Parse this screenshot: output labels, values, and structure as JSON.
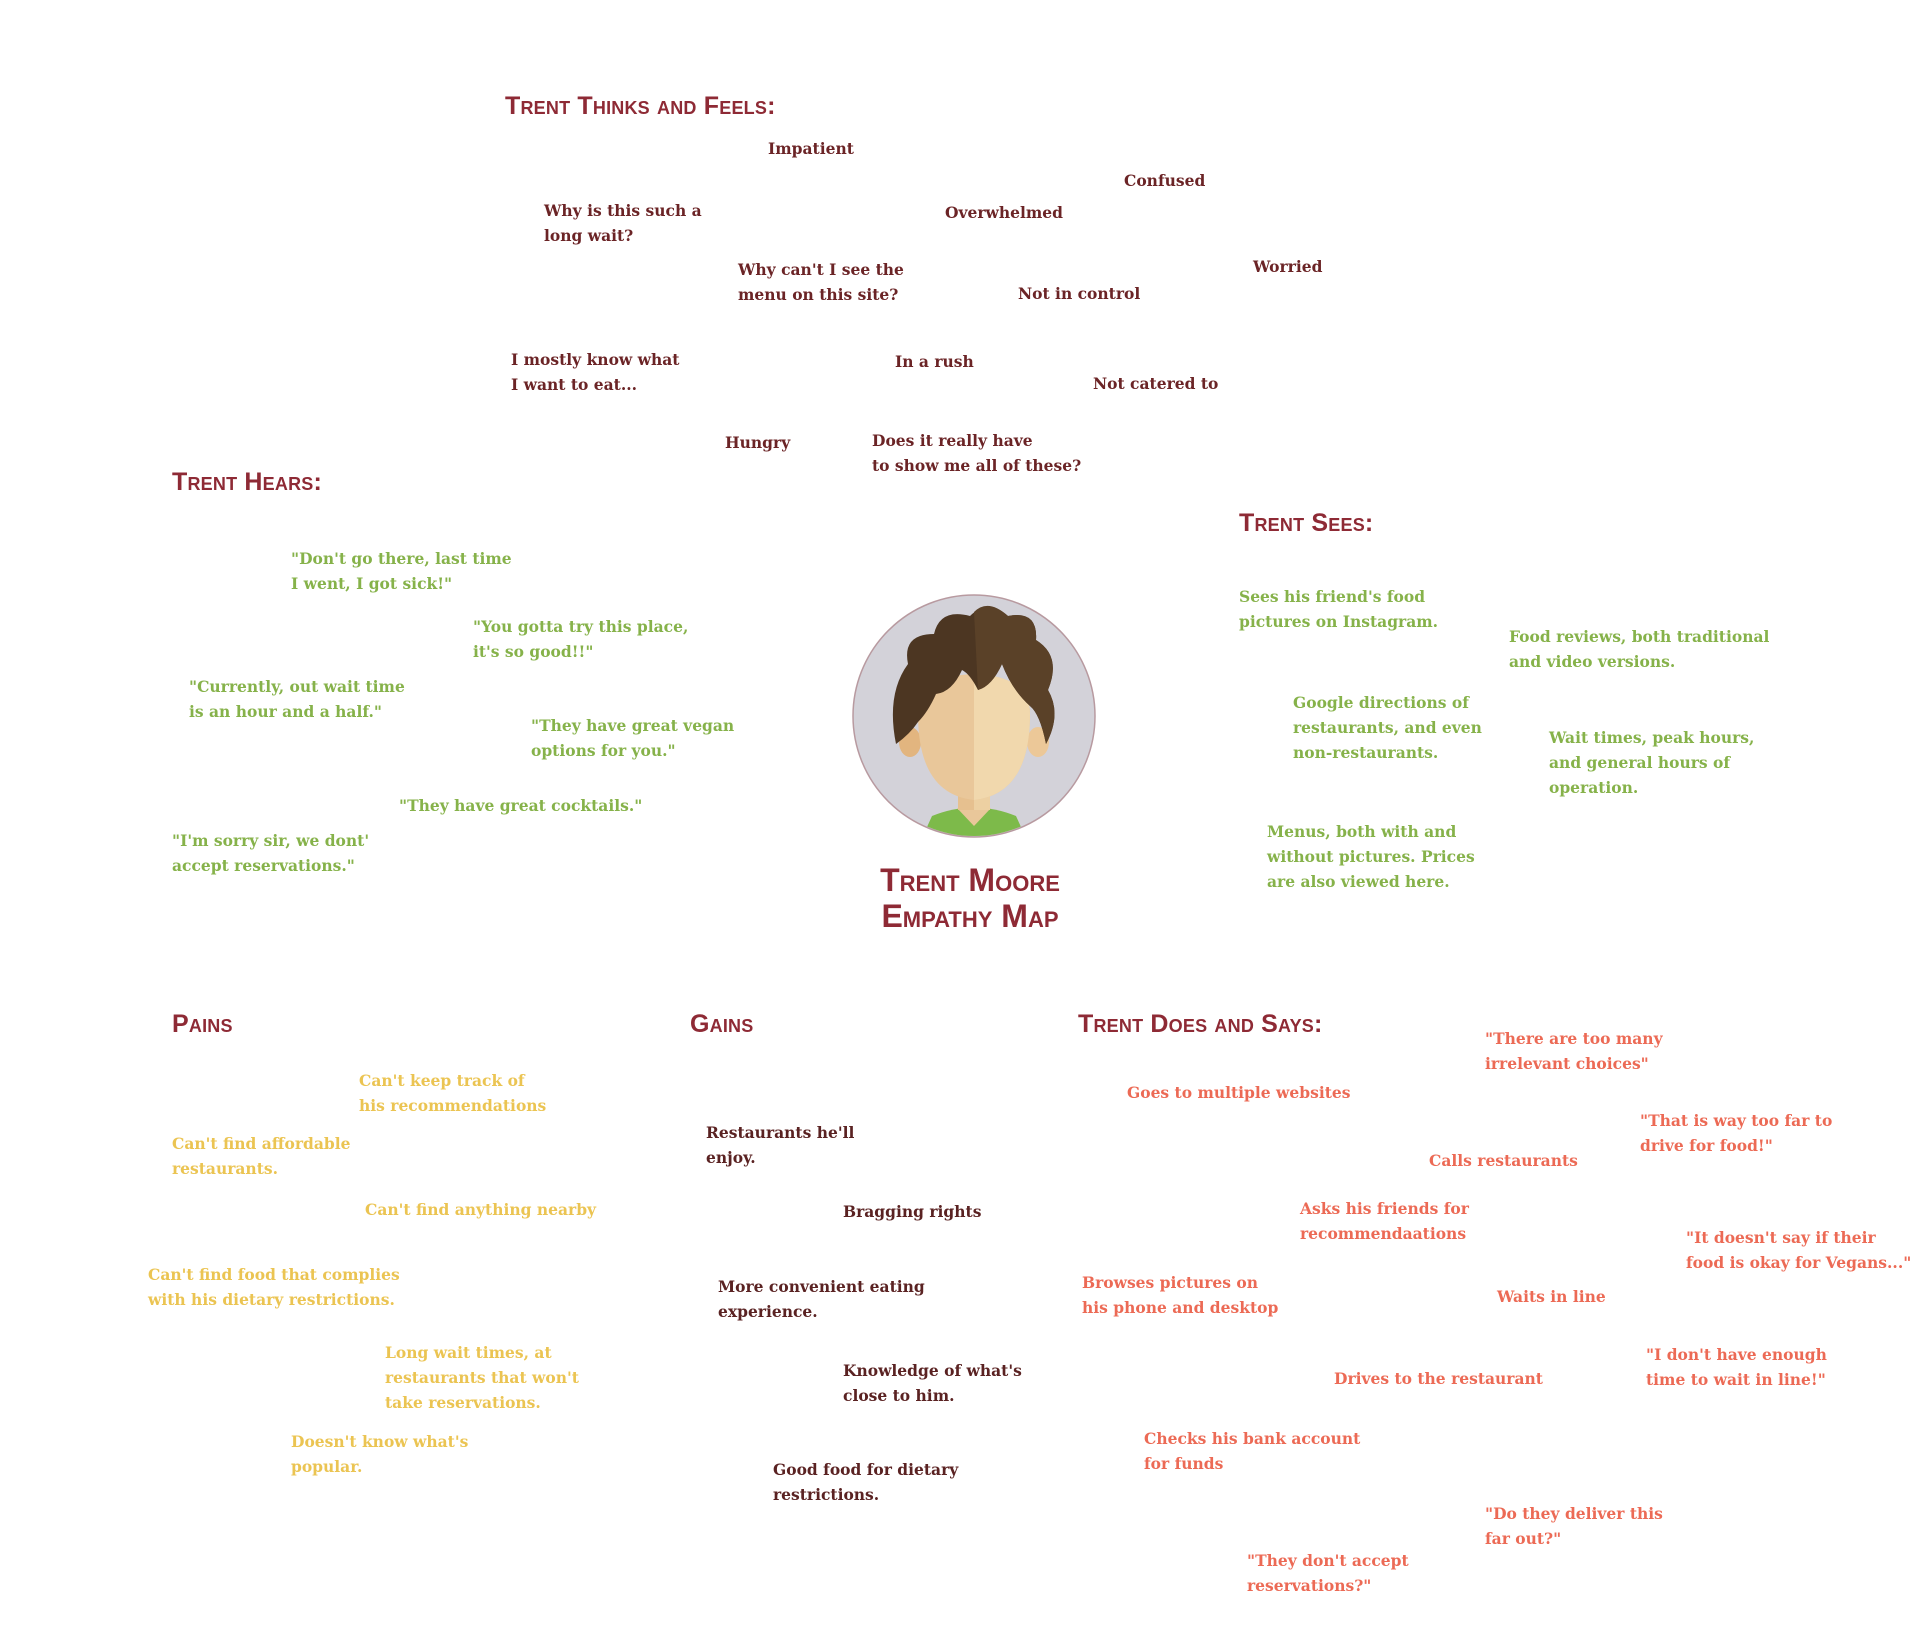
{
  "title": {
    "line1": "Trent Moore",
    "line2": "Empathy Map"
  },
  "colors": {
    "heading": "#8e2a35",
    "thinks": "#6b2426",
    "hears": "#86b24a",
    "sees": "#86b24a",
    "pains": "#ebc452",
    "gains": "#5a2222",
    "does": "#ec6a55",
    "avatar_bg": "#d3d2d9"
  },
  "avatar": {
    "icon": "person-avatar-icon"
  },
  "thinks": {
    "heading": "Trent Thinks and Feels:",
    "items": [
      "Impatient",
      "Confused",
      "Why is this such a\nlong wait?",
      "Overwhelmed",
      "Why can't I see the\nmenu on this site?",
      "Worried",
      "Not in control",
      "I mostly know what\nI want to eat...",
      "In a rush",
      "Not catered to",
      "Hungry",
      "Does it really have\nto show me all of these?"
    ]
  },
  "hears": {
    "heading": "Trent Hears:",
    "items": [
      "\"Don't go there, last time\nI went, I got sick!\"",
      "\"You gotta try this place,\nit's so good!!\"",
      "\"Currently, out wait time\nis an hour and a half.\"",
      "\"They have great vegan\noptions for you.\"",
      "\"They have great cocktails.\"",
      "\"I'm sorry sir, we dont'\naccept reservations.\""
    ]
  },
  "sees": {
    "heading": "Trent Sees:",
    "items": [
      "Sees his friend's food\npictures on Instagram.",
      "Food reviews, both traditional\nand video versions.",
      "Google directions of\nrestaurants, and even\nnon-restaurants.",
      "Wait times, peak hours,\nand general hours of\noperation.",
      "Menus, both with and\nwithout pictures. Prices\nare also viewed here."
    ]
  },
  "pains": {
    "heading": "Pains",
    "items": [
      "Can't keep track of\nhis recommendations",
      "Can't find affordable\nrestaurants.",
      "Can't find anything nearby",
      "Can't find food that complies\nwith his dietary restrictions.",
      "Long wait times, at\nrestaurants that won't\ntake reservations.",
      "Doesn't know what's\npopular."
    ]
  },
  "gains": {
    "heading": "Gains",
    "items": [
      "Restaurants he'll\nenjoy.",
      "Bragging rights",
      "More convenient eating\nexperience.",
      "Knowledge of what's\nclose to him.",
      "Good food for dietary\nrestrictions."
    ]
  },
  "does": {
    "heading": "Trent Does and Says:",
    "items": [
      "\"There are too many\nirrelevant choices\"",
      "Goes to multiple websites",
      "\"That is way too far to\ndrive for food!\"",
      "Calls restaurants",
      "Asks his friends for\nrecommendaations",
      "\"It doesn't say if their\nfood is okay for Vegans...\"",
      "Browses pictures on\nhis phone and desktop",
      "Waits in line",
      "Drives to the restaurant",
      "\"I don't have enough\ntime to wait in line!\"",
      "Checks his bank account\nfor funds",
      "\"Do they deliver this\nfar out?\"",
      "\"They don't accept\nreservations?\""
    ]
  }
}
